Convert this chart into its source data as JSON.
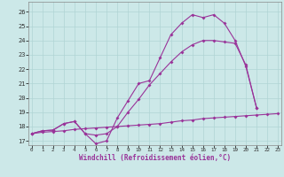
{
  "xlabel": "Windchill (Refroidissement éolien,°C)",
  "bg_color": "#cce8e8",
  "line_color": "#993399",
  "grid_color": "#b0d4d4",
  "x_ticks": [
    0,
    1,
    2,
    3,
    4,
    5,
    6,
    7,
    8,
    9,
    10,
    11,
    12,
    13,
    14,
    15,
    16,
    17,
    18,
    19,
    20,
    21,
    22,
    23
  ],
  "y_ticks": [
    17,
    18,
    19,
    20,
    21,
    22,
    23,
    24,
    25,
    26
  ],
  "ylim": [
    16.7,
    26.7
  ],
  "xlim": [
    -0.3,
    23.3
  ],
  "line1_x": [
    0,
    1,
    2,
    3,
    4,
    5,
    6,
    7,
    8,
    9,
    10,
    11,
    12,
    13,
    14,
    15,
    16,
    17,
    18,
    19,
    20,
    21
  ],
  "line1_y": [
    17.5,
    17.7,
    17.75,
    18.2,
    18.35,
    17.5,
    16.8,
    17.0,
    18.6,
    19.8,
    21.0,
    21.2,
    22.8,
    24.4,
    25.2,
    25.8,
    25.6,
    25.8,
    25.2,
    24.0,
    22.2,
    19.3
  ],
  "line2_x": [
    0,
    1,
    2,
    3,
    4,
    5,
    6,
    7,
    8,
    9,
    10,
    11,
    12,
    13,
    14,
    15,
    16,
    17,
    18,
    19,
    20,
    21
  ],
  "line2_y": [
    17.5,
    17.7,
    17.75,
    18.2,
    18.35,
    17.5,
    17.4,
    17.5,
    18.0,
    19.0,
    19.9,
    20.9,
    21.7,
    22.5,
    23.2,
    23.7,
    24.0,
    24.0,
    23.9,
    23.8,
    22.3,
    19.3
  ],
  "line3_x": [
    0,
    1,
    2,
    3,
    4,
    5,
    6,
    7,
    8,
    9,
    10,
    11,
    12,
    13,
    14,
    15,
    16,
    17,
    18,
    19,
    20,
    21,
    22,
    23
  ],
  "line3_y": [
    17.5,
    17.6,
    17.65,
    17.7,
    17.8,
    17.85,
    17.9,
    17.95,
    18.0,
    18.05,
    18.1,
    18.15,
    18.2,
    18.3,
    18.4,
    18.45,
    18.55,
    18.6,
    18.65,
    18.7,
    18.75,
    18.8,
    18.85,
    18.9
  ]
}
